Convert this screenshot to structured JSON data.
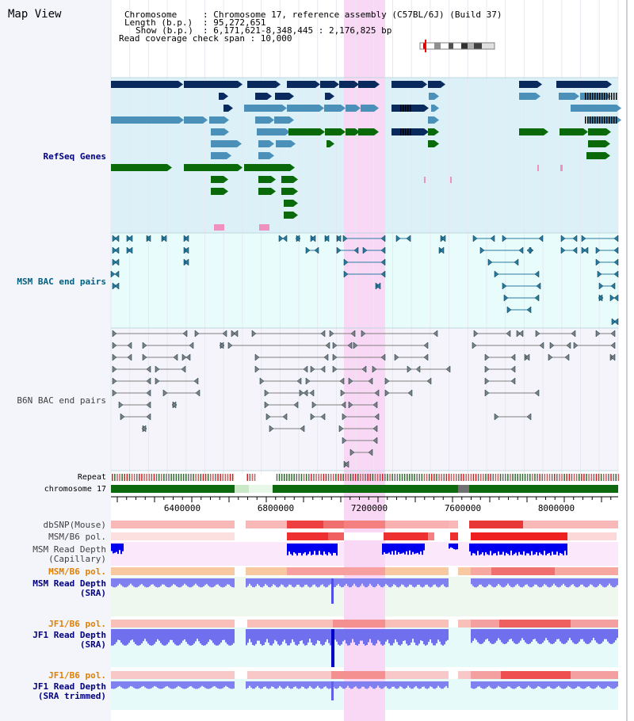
{
  "app": {
    "title": "Map View"
  },
  "info": {
    "chromosome_key": "Chromosome",
    "chromosome_val": ": Chromosome 17, reference assembly (C57BL/6J) (Build 37)",
    "length_key": "Length (b.p.)",
    "length_val": ": 95,272,651",
    "show_key": "Show (b.p.)",
    "show_val": ": 6,171,621-8,348,445 : 2,176,825 bp",
    "coverage": "Read coverage check span : 10,000"
  },
  "tracks": {
    "refseq": "RefSeq Genes",
    "msm_bac": "MSM BAC end pairs",
    "b6n_bac": "B6N BAC end pairs",
    "repeat": "Repeat",
    "chromosome": "chromosome 17",
    "dbsnp": "dbSNP(Mouse)",
    "msm_b6_pol_1": "MSM/B6 pol.",
    "msm_read_depth_cap_1": "MSM Read Depth",
    "msm_read_depth_cap_2": "(Capillary)",
    "msm_b6_pol_2": "MSM/B6 pol.",
    "msm_read_depth_sra_1": "MSM Read Depth",
    "msm_read_depth_sra_2": "(SRA)",
    "jf1_b6_pol_1": "JF1/B6 pol.",
    "jf1_read_depth_sra_1": "JF1 Read Depth",
    "jf1_read_depth_sra_2": "(SRA)",
    "jf1_b6_pol_2": "JF1/B6 pol.",
    "jf1_read_depth_trim_1": "JF1 Read Depth",
    "jf1_read_depth_trim_2": "(SRA trimmed)"
  },
  "axis": {
    "ticks": [
      "6400000",
      "6800000",
      "7200000",
      "7600000",
      "8000000"
    ]
  },
  "colors": {
    "refseq_bg": "#dcf0f8",
    "msm_bg": "#e8fcfc",
    "b6n_bg": "#f4f4fa",
    "highlight": "#f8d8f4",
    "navy": "#0a2a5e",
    "steel": "#4a90b8",
    "green": "#0a6a0a",
    "depth_blue": "#0000dd",
    "depth_light": "#7070f0",
    "label_navy": "#000080",
    "label_orange": "#e08000",
    "label_teal": "#006080"
  }
}
